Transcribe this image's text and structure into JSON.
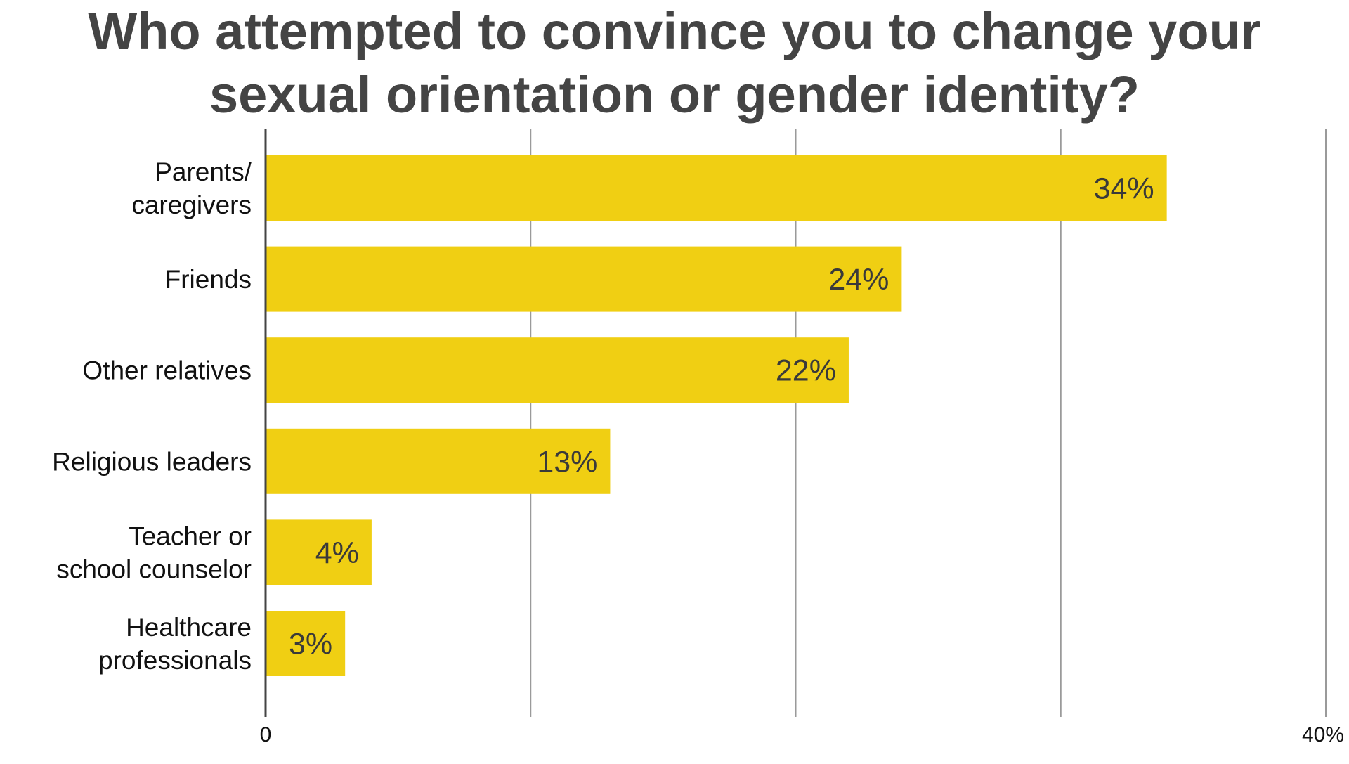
{
  "chart_data": {
    "type": "bar",
    "orientation": "horizontal",
    "title_lines": [
      "Who attempted to convince you to change your",
      "sexual orientation or gender identity?"
    ],
    "categories": [
      [
        "Parents/",
        "caregivers"
      ],
      [
        "Friends"
      ],
      [
        "Other relatives"
      ],
      [
        "Religious leaders"
      ],
      [
        "Teacher or",
        "school counselor"
      ],
      [
        "Healthcare",
        "professionals"
      ]
    ],
    "values": [
      34,
      24,
      22,
      13,
      4,
      3
    ],
    "value_labels": [
      "34%",
      "24%",
      "22%",
      "13%",
      "4%",
      "3%"
    ],
    "xlim": [
      0,
      40
    ],
    "x_tick_labels": [
      "0",
      "40%"
    ],
    "gridlines": [
      0,
      10,
      20,
      30,
      40
    ],
    "grid": true,
    "legend": "none",
    "bar_color": "#F0CF13",
    "gridline_color": "#9a9a9a",
    "axis_color": "#444444",
    "title_color": "#444444"
  }
}
